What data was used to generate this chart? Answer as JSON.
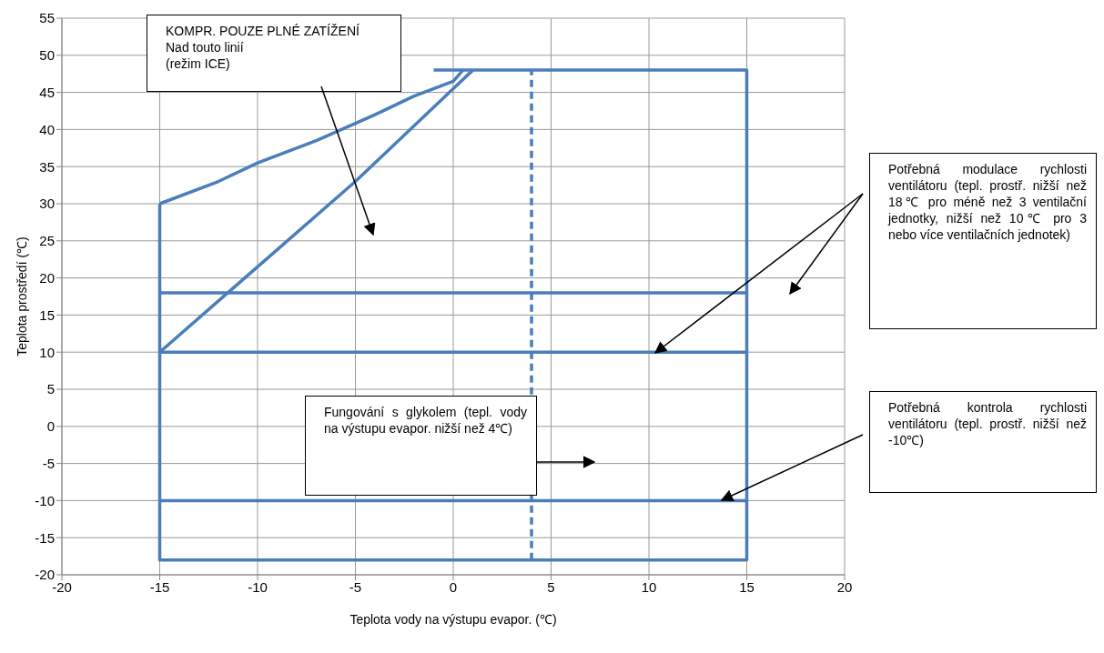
{
  "chart_data": {
    "type": "line",
    "xlabel": "Teplota vody na výstupu evapor. (℃)",
    "ylabel": "Teplota prostředí (℃)",
    "xlim": [
      -20,
      20
    ],
    "xticks": [
      -20,
      -15,
      -10,
      -5,
      0,
      5,
      10,
      15,
      20
    ],
    "ylim": [
      -20,
      55
    ],
    "yticks": [
      -20,
      -15,
      -10,
      -5,
      0,
      5,
      10,
      15,
      20,
      25,
      30,
      35,
      40,
      45,
      50,
      55
    ],
    "grid": true,
    "marker": "none",
    "line_style": "solid",
    "series": [
      {
        "color": "#4a7ebb",
        "x": [
          -15,
          -15,
          15,
          15,
          -1
        ],
        "values": [
          30,
          -18,
          -18,
          48,
          48
        ]
      },
      {
        "color": "#4a7ebb",
        "x": [
          -15,
          -12,
          -10,
          -7,
          -4,
          -2,
          0,
          0.5
        ],
        "values": [
          30,
          33,
          35.5,
          38.5,
          42,
          44.5,
          46.5,
          48
        ]
      },
      {
        "color": "#4a7ebb",
        "x": [
          -15,
          -10,
          -5,
          0,
          1
        ],
        "values": [
          10,
          21.5,
          33,
          45.5,
          48
        ]
      },
      {
        "color": "#4a7ebb",
        "x": [
          -15,
          15
        ],
        "values": [
          18,
          18
        ]
      },
      {
        "color": "#4a7ebb",
        "x": [
          -15,
          15
        ],
        "values": [
          10,
          10
        ]
      },
      {
        "color": "#4a7ebb",
        "x": [
          -15,
          15
        ],
        "values": [
          -10,
          -10
        ]
      },
      {
        "color": "#4a7ebb",
        "x": [
          4,
          4
        ],
        "values": [
          -18,
          48
        ],
        "line_style": "dashed"
      }
    ],
    "annotations": [
      "KOMPR. POUZE PLNÉ ZATÍŽENÍ\nNad touto linií\n(režim ICE)",
      "Potřebná modulace rychlosti ventilátoru (tepl. prostř. nižší než 18℃ pro méně než 3 ventilační jednotky, nižší než 10℃ pro 3 nebo více ventilačních jednotek)",
      "Fungování s glykolem (tepl. vody na výstupu evapor. nižší než 4℃)",
      "Potřebná kontrola rychlosti ventilátoru (tepl. prostř. nižší než -10℃)"
    ]
  }
}
